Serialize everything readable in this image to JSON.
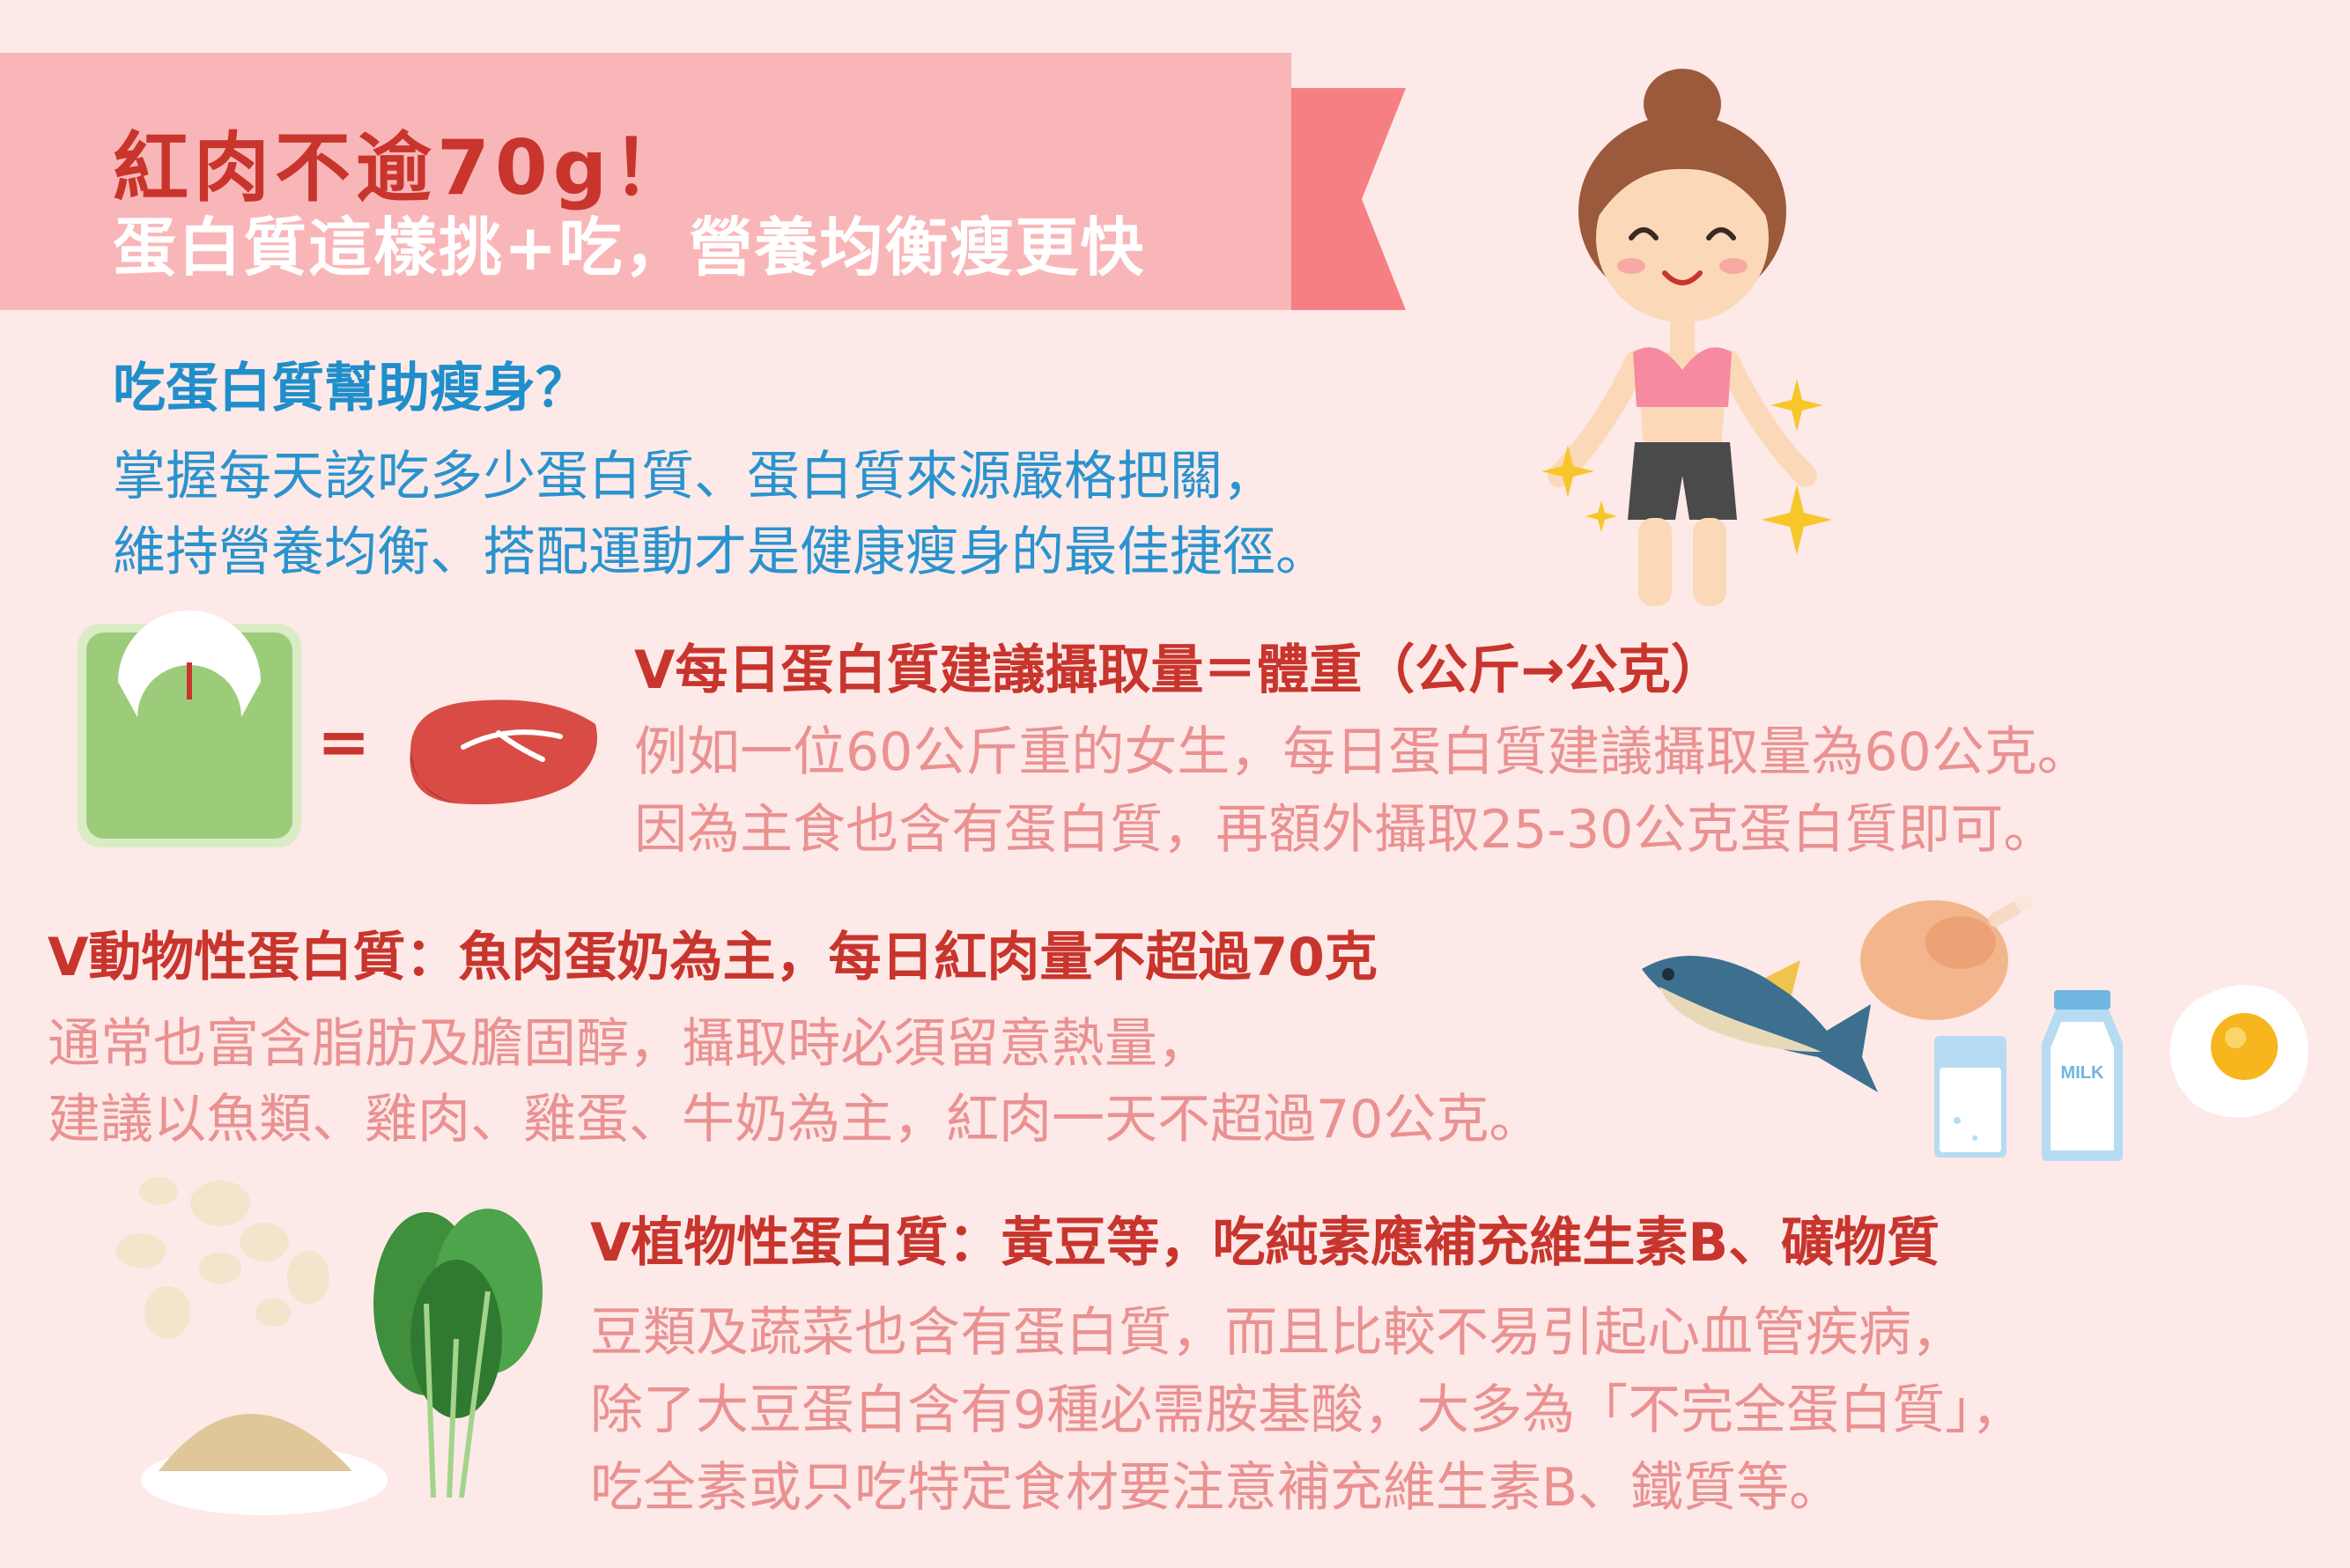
{
  "banner": {
    "title": "紅肉不逾70g！",
    "subtitle": "蛋白質這樣挑+吃，營養均衡瘦更快"
  },
  "intro": {
    "heading": "吃蛋白質幫助瘦身？",
    "lines": [
      "掌握每天該吃多少蛋白質、蛋白質來源嚴格把關，",
      "維持營養均衡、搭配運動才是健康瘦身的最佳捷徑。"
    ]
  },
  "daily": {
    "equals_sign": "=",
    "heading": "V每日蛋白質建議攝取量＝體重（公斤→公克）",
    "lines": [
      "例如一位60公斤重的女生，每日蛋白質建議攝取量為60公克。",
      "因為主食也含有蛋白質，再額外攝取25-30公克蛋白質即可。"
    ]
  },
  "animal": {
    "heading": "V動物性蛋白質：魚肉蛋奶為主，每日紅肉量不超過70克",
    "lines": [
      "通常也富含脂肪及膽固醇，攝取時必須留意熱量，",
      "建議以魚類、雞肉、雞蛋、牛奶為主，紅肉一天不超過70公克。"
    ],
    "milk_label": "MILK"
  },
  "plant": {
    "heading": "V植物性蛋白質：黃豆等，吃純素應補充維生素B、礦物質",
    "lines": [
      "豆類及蔬菜也含有蛋白質，而且比較不易引起心血管疾病，",
      "除了大豆蛋白含有9種必需胺基酸，大多為「不完全蛋白質」，",
      "吃全素或只吃特定食材要注意補充維生素B、鐵質等。"
    ]
  },
  "colors": {
    "background": "#fde9e8",
    "banner": "#f9b6b8",
    "banner_tail": "#f57f82",
    "title_red": "#c8352d",
    "intro_blue": "#2a93ce",
    "body_pink": "#ea9191"
  },
  "icons": [
    "woman-illustration",
    "scale-icon",
    "steak-icon",
    "fish-icon",
    "chicken-icon",
    "milk-glass-icon",
    "milk-bottle-icon",
    "egg-icon",
    "beans-icon",
    "spinach-icon",
    "sparkle-icon"
  ]
}
